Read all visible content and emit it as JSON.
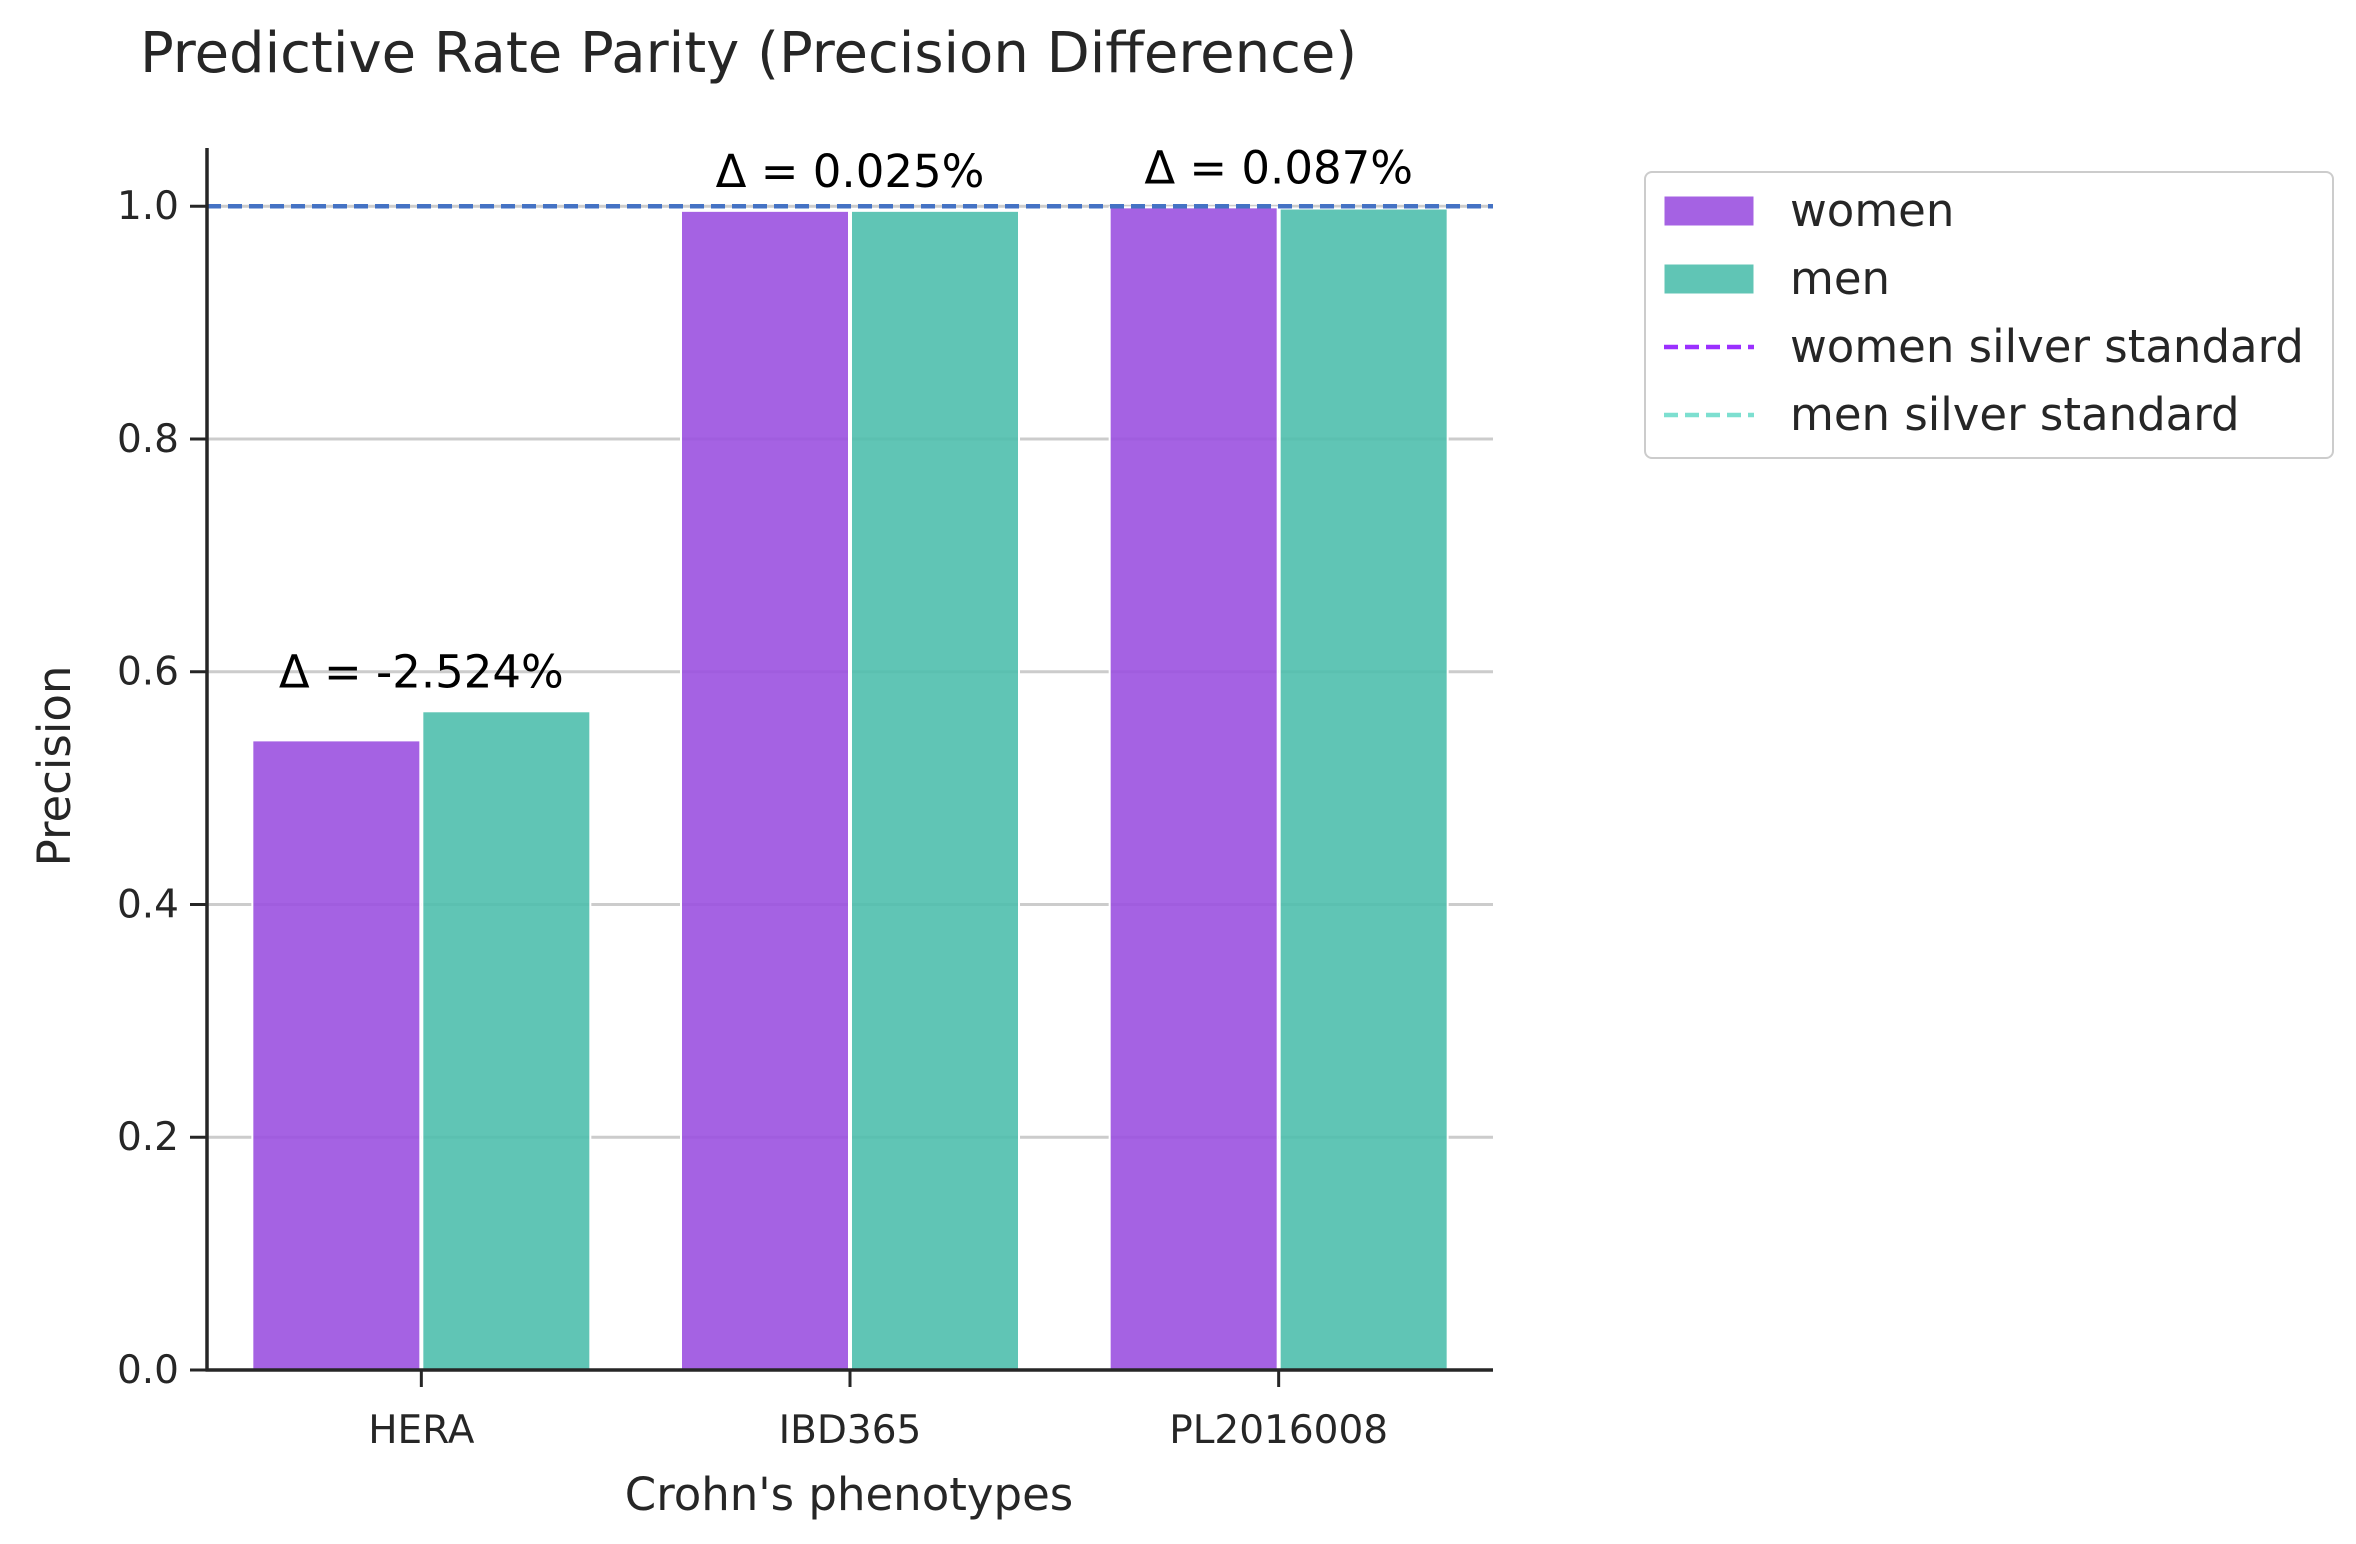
{
  "chart_data": {
    "type": "bar",
    "title": "Predictive Rate Parity (Precision Difference)",
    "xlabel": "Crohn's phenotypes",
    "ylabel": "Precision",
    "categories": [
      "HERA",
      "IBD365",
      "PL2016008"
    ],
    "series": [
      {
        "name": "women",
        "values": [
          0.541,
          0.996,
          0.999
        ],
        "color": "#9b51e0"
      },
      {
        "name": "men",
        "values": [
          0.566,
          0.996,
          0.998
        ],
        "color": "#4fbfad"
      }
    ],
    "reference_lines": [
      {
        "name": "women silver standard",
        "y": 1.0,
        "color": "#9b30ff",
        "style": "dashed"
      },
      {
        "name": "men silver standard",
        "y": 1.0,
        "color": "#7ddfd0",
        "style": "dashed"
      }
    ],
    "overlay_line": {
      "y": 1.0,
      "color": "#4472c4",
      "style": "dashed"
    },
    "annotations": [
      "Δ = -2.524%",
      "Δ = 0.025%",
      "Δ = 0.087%"
    ],
    "ylim": [
      0,
      1.05
    ],
    "yticks": [
      "0.0",
      "0.2",
      "0.4",
      "0.6",
      "0.8",
      "1.0"
    ],
    "yticks_values": [
      0,
      0.2,
      0.4,
      0.6,
      0.8,
      1.0
    ],
    "grid": "horizontal",
    "legend_position": "outside-right"
  }
}
